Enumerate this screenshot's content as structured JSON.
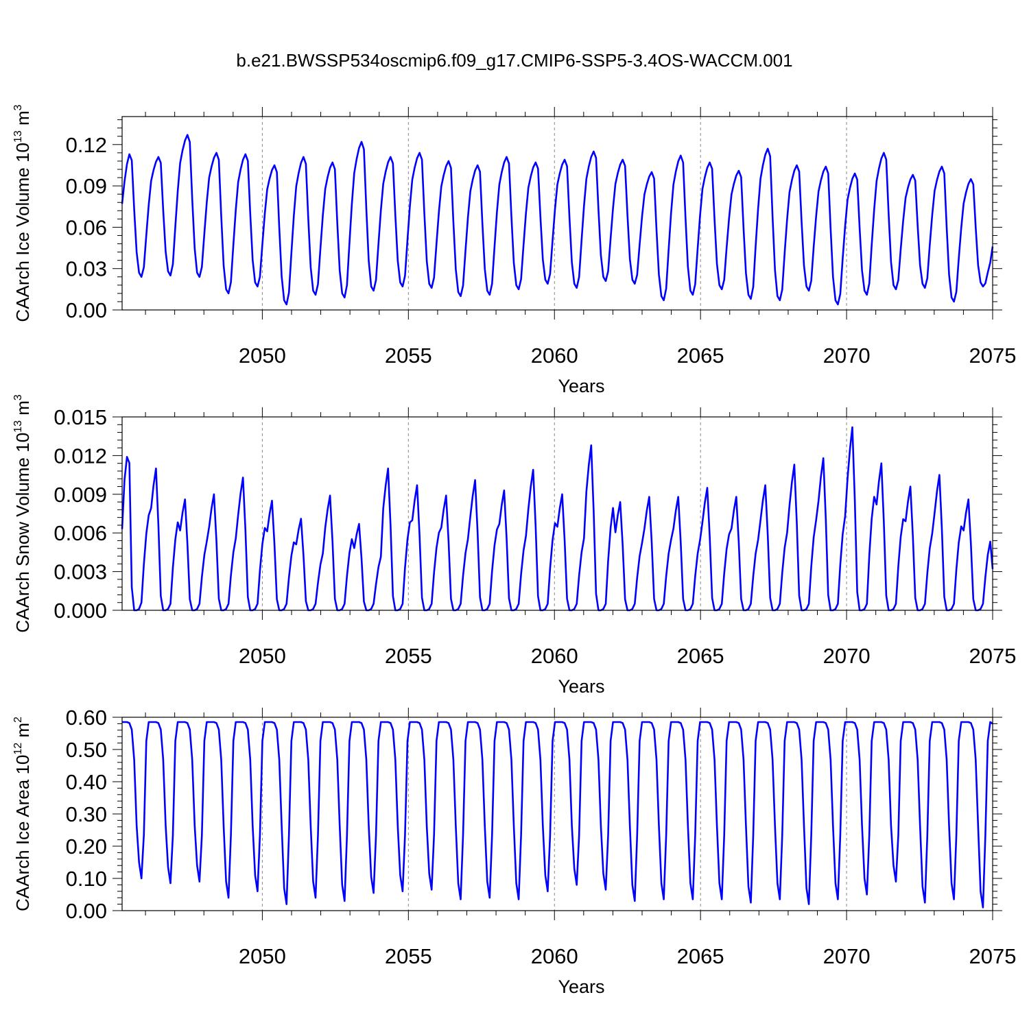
{
  "title": "b.e21.BWSSP534oscmip6.f09_g17.CMIP6-SSP5-3.4OS-WACCM.001",
  "colors": {
    "line": "#0000ff",
    "axis": "#000000",
    "grid": "#888888"
  },
  "chart_data": [
    {
      "type": "line",
      "ylabel": "CAArch Ice Volume",
      "yunit_base": "10",
      "yunit_exp": "13",
      "yunit_rest": "m",
      "yunit_rest_exp": "3",
      "xlabel": "Years",
      "xlim": [
        2045.2,
        2075.0
      ],
      "ylim": [
        0,
        0.1403
      ],
      "y_ticks": [
        "0.00",
        "0.03",
        "0.06",
        "0.09",
        "0.12"
      ],
      "y_tick_values": [
        0,
        0.03,
        0.06,
        0.09,
        0.12
      ],
      "x_ticks": [
        "2050",
        "2055",
        "2060",
        "2065",
        "2070",
        "2075"
      ],
      "x_tick_values": [
        2050,
        2055,
        2060,
        2065,
        2070,
        2075
      ],
      "x_grid": [
        2050,
        2055,
        2060,
        2065,
        2070
      ],
      "series": [
        {
          "peaks": [
            0.113,
            0.111,
            0.127,
            0.114,
            0.113,
            0.105,
            0.111,
            0.107,
            0.122,
            0.111,
            0.114,
            0.108,
            0.105,
            0.111,
            0.107,
            0.109,
            0.115,
            0.109,
            0.1,
            0.112,
            0.107,
            0.101,
            0.117,
            0.105,
            0.104,
            0.099,
            0.114,
            0.098,
            0.104,
            0.095
          ],
          "troughs": [
            0.024,
            0.025,
            0.024,
            0.012,
            0.017,
            0.004,
            0.011,
            0.009,
            0.014,
            0.017,
            0.016,
            0.01,
            0.011,
            0.015,
            0.019,
            0.016,
            0.021,
            0.019,
            0.007,
            0.011,
            0.015,
            0.008,
            0.007,
            0.014,
            0.004,
            0.011,
            0.015,
            0.016,
            0.006,
            0.017
          ],
          "end_value": 0.046,
          "peak_month": 3,
          "trough_month": 9
        }
      ]
    },
    {
      "type": "line",
      "ylabel": "CAArch Snow Volume",
      "yunit_base": "10",
      "yunit_exp": "13",
      "yunit_rest": "m",
      "yunit_rest_exp": "3",
      "xlabel": "Years",
      "xlim": [
        2045.2,
        2075.0
      ],
      "ylim": [
        0,
        0.015
      ],
      "y_ticks": [
        "0.000",
        "0.003",
        "0.006",
        "0.009",
        "0.012",
        "0.015"
      ],
      "y_tick_values": [
        0,
        0.003,
        0.006,
        0.009,
        0.012,
        0.015
      ],
      "x_ticks": [
        "2050",
        "2055",
        "2060",
        "2065",
        "2070",
        "2075"
      ],
      "x_tick_values": [
        2050,
        2055,
        2060,
        2065,
        2070,
        2075
      ],
      "x_grid": [
        2050,
        2055,
        2060,
        2065,
        2070
      ],
      "series": [
        {
          "peaks": [
            0.0119,
            0.011,
            0.0086,
            0.009,
            0.0103,
            0.0085,
            0.0071,
            0.0089,
            0.0067,
            0.011,
            0.0097,
            0.0089,
            0.0101,
            0.0093,
            0.0109,
            0.009,
            0.0128,
            0.0084,
            0.0088,
            0.0088,
            0.0095,
            0.0088,
            0.0097,
            0.0113,
            0.0118,
            0.0142,
            0.0114,
            0.0096,
            0.0105,
            0.0086
          ],
          "troughs": [
            0.0,
            0.0,
            0.0,
            0.0,
            0.0,
            0.0,
            0.0,
            0.0,
            0.0,
            0.0,
            0.0,
            0.0,
            0.0,
            0.0,
            0.0,
            0.0,
            0.0,
            0.0,
            0.0,
            0.0,
            0.0,
            0.0,
            0.0,
            0.0,
            0.0,
            0.0,
            0.0,
            0.0,
            0.0,
            0.0
          ],
          "start_value": 0.0063,
          "end_value": 0.0032,
          "peak_month": 3,
          "trough_month": 7
        }
      ]
    },
    {
      "type": "line",
      "ylabel": "CAArch Ice Area",
      "yunit_base": "10",
      "yunit_exp": "12",
      "yunit_rest": "m",
      "yunit_rest_exp": "2",
      "xlabel": "Years",
      "xlim": [
        2045.2,
        2075.0
      ],
      "ylim": [
        0,
        0.6
      ],
      "y_ticks": [
        "0.00",
        "0.10",
        "0.20",
        "0.30",
        "0.40",
        "0.50",
        "0.60"
      ],
      "y_tick_values": [
        0,
        0.1,
        0.2,
        0.3,
        0.4,
        0.5,
        0.6
      ],
      "x_ticks": [
        "2050",
        "2055",
        "2060",
        "2065",
        "2070",
        "2075"
      ],
      "x_tick_values": [
        2050,
        2055,
        2060,
        2065,
        2070,
        2075
      ],
      "x_grid": [
        2050,
        2055,
        2060,
        2065,
        2070
      ],
      "series": [
        {
          "max_value": 0.585,
          "troughs": [
            0.1,
            0.085,
            0.09,
            0.04,
            0.06,
            0.02,
            0.04,
            0.03,
            0.055,
            0.06,
            0.065,
            0.035,
            0.04,
            0.035,
            0.06,
            0.08,
            0.065,
            0.03,
            0.035,
            0.035,
            0.035,
            0.025,
            0.035,
            0.02,
            0.035,
            0.05,
            0.09,
            0.025,
            0.035,
            0.01
          ],
          "end_value": 0.58,
          "trough_month": 9
        }
      ]
    }
  ]
}
